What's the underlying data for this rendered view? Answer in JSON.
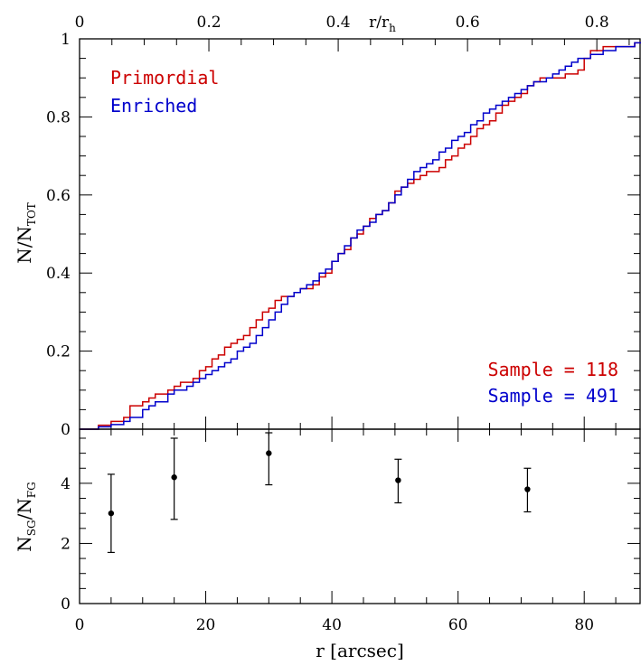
{
  "chart_data": [
    {
      "type": "line",
      "panel": "top",
      "step": true,
      "xlabel": "r [arcsec]",
      "xlim": [
        0,
        89
      ],
      "ylabel": {
        "main": "N/N",
        "sub": "TOT"
      },
      "ylim": [
        0,
        1
      ],
      "yticks": [
        "0",
        "0.2",
        "0.4",
        "0.6",
        "0.8",
        "1"
      ],
      "top_axis": {
        "label": {
          "main": "r/r",
          "sub": "h"
        },
        "r_per_unit": 102.5,
        "ticks": [
          "0",
          "0.2",
          "0.4",
          "0.6",
          "0.8"
        ],
        "tick_values": [
          0,
          0.2,
          0.4,
          0.6,
          0.8
        ]
      },
      "legend": {
        "placement": "top-left",
        "entries": [
          "Primordial",
          "Enriched"
        ]
      },
      "annotations": [
        "Sample = 118",
        "Sample = 491"
      ],
      "series": [
        {
          "name": "Primordial",
          "color": "#cc0000",
          "x": [
            0,
            3,
            5,
            7,
            8,
            10,
            11,
            12,
            13,
            14,
            15,
            16,
            17,
            18,
            19,
            20,
            21,
            22,
            23,
            24,
            25,
            26,
            27,
            28,
            29,
            30,
            31,
            32,
            33,
            34,
            35,
            36,
            37,
            38,
            39,
            40,
            41,
            42,
            43,
            44,
            45,
            46,
            47,
            48,
            49,
            50,
            51,
            52,
            53,
            54,
            55,
            56,
            57,
            58,
            59,
            60,
            61,
            62,
            63,
            64,
            65,
            66,
            67,
            68,
            69,
            70,
            71,
            72,
            73,
            74,
            75,
            76,
            77,
            78,
            79,
            80,
            81,
            82,
            83,
            84,
            85,
            86,
            87,
            88,
            89
          ],
          "y": [
            0,
            0.01,
            0.02,
            0.03,
            0.06,
            0.07,
            0.08,
            0.09,
            0.09,
            0.1,
            0.11,
            0.12,
            0.12,
            0.13,
            0.15,
            0.16,
            0.18,
            0.19,
            0.21,
            0.22,
            0.23,
            0.24,
            0.26,
            0.28,
            0.3,
            0.31,
            0.33,
            0.34,
            0.34,
            0.35,
            0.36,
            0.36,
            0.37,
            0.39,
            0.4,
            0.43,
            0.45,
            0.46,
            0.49,
            0.5,
            0.52,
            0.54,
            0.55,
            0.56,
            0.58,
            0.61,
            0.62,
            0.63,
            0.64,
            0.65,
            0.66,
            0.66,
            0.67,
            0.69,
            0.7,
            0.72,
            0.73,
            0.75,
            0.77,
            0.78,
            0.79,
            0.81,
            0.83,
            0.84,
            0.85,
            0.86,
            0.88,
            0.89,
            0.9,
            0.9,
            0.9,
            0.9,
            0.91,
            0.91,
            0.92,
            0.95,
            0.97,
            0.97,
            0.98,
            0.98,
            0.98,
            0.98,
            0.98,
            0.99,
            0.99
          ]
        },
        {
          "name": "Enriched",
          "color": "#0000cc",
          "x": [
            0,
            3,
            5,
            7,
            8,
            10,
            11,
            12,
            13,
            14,
            15,
            16,
            17,
            18,
            19,
            20,
            21,
            22,
            23,
            24,
            25,
            26,
            27,
            28,
            29,
            30,
            31,
            32,
            33,
            34,
            35,
            36,
            37,
            38,
            39,
            40,
            41,
            42,
            43,
            44,
            45,
            46,
            47,
            48,
            49,
            50,
            51,
            52,
            53,
            54,
            55,
            56,
            57,
            58,
            59,
            60,
            61,
            62,
            63,
            64,
            65,
            66,
            67,
            68,
            69,
            70,
            71,
            72,
            73,
            74,
            75,
            76,
            77,
            78,
            79,
            80,
            81,
            82,
            83,
            84,
            85,
            86,
            87,
            88,
            89
          ],
          "y": [
            0,
            0.006,
            0.012,
            0.02,
            0.03,
            0.05,
            0.06,
            0.07,
            0.07,
            0.09,
            0.1,
            0.1,
            0.11,
            0.12,
            0.13,
            0.14,
            0.15,
            0.16,
            0.17,
            0.18,
            0.2,
            0.21,
            0.22,
            0.24,
            0.26,
            0.28,
            0.3,
            0.32,
            0.34,
            0.35,
            0.36,
            0.37,
            0.38,
            0.4,
            0.41,
            0.43,
            0.45,
            0.47,
            0.49,
            0.51,
            0.52,
            0.53,
            0.55,
            0.56,
            0.58,
            0.6,
            0.62,
            0.64,
            0.66,
            0.67,
            0.68,
            0.69,
            0.71,
            0.72,
            0.74,
            0.75,
            0.76,
            0.78,
            0.79,
            0.81,
            0.82,
            0.83,
            0.84,
            0.85,
            0.86,
            0.87,
            0.88,
            0.89,
            0.89,
            0.9,
            0.91,
            0.92,
            0.93,
            0.94,
            0.95,
            0.95,
            0.96,
            0.96,
            0.97,
            0.97,
            0.98,
            0.98,
            0.98,
            0.99,
            0.99
          ]
        }
      ]
    },
    {
      "type": "scatter",
      "panel": "bottom",
      "error_bars": true,
      "xlabel": "r [arcsec]",
      "xlim": [
        0,
        89
      ],
      "xticks": [
        "0",
        "20",
        "40",
        "60",
        "80"
      ],
      "ylabel": {
        "main": "N",
        "sub1": "SG",
        "mid": "/N",
        "sub2": "FG"
      },
      "ylim": [
        0,
        5.8
      ],
      "yticks": [
        "0",
        "2",
        "4"
      ],
      "points": [
        {
          "x": 5,
          "y": 3.0,
          "lo": 1.7,
          "hi": 4.3
        },
        {
          "x": 15,
          "y": 4.2,
          "lo": 2.8,
          "hi": 5.5
        },
        {
          "x": 30,
          "y": 5.0,
          "lo": 3.95,
          "hi": 6.0
        },
        {
          "x": 50.5,
          "y": 4.1,
          "lo": 3.35,
          "hi": 4.8
        },
        {
          "x": 71,
          "y": 3.8,
          "lo": 3.05,
          "hi": 4.5
        }
      ]
    }
  ]
}
